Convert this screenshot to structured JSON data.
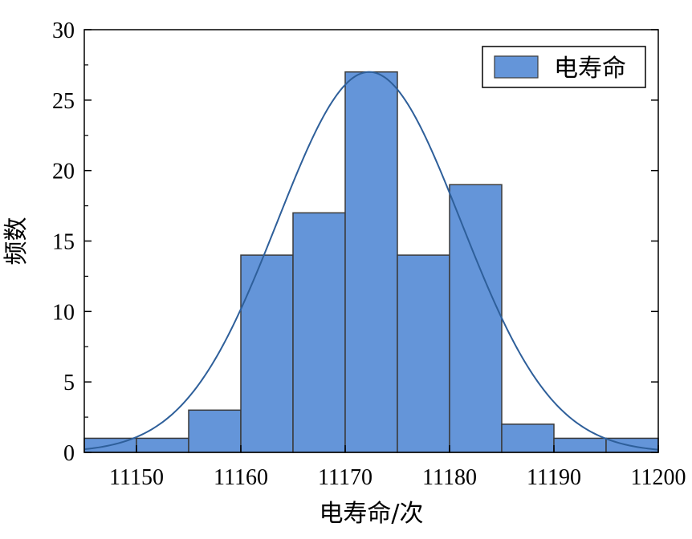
{
  "chart_data": {
    "type": "bar",
    "subtype": "histogram",
    "bin_edges": [
      11145,
      11150,
      11155,
      11160,
      11165,
      11170,
      11175,
      11180,
      11185,
      11190,
      11195,
      11200
    ],
    "values": [
      1,
      1,
      3,
      14,
      17,
      27,
      14,
      19,
      2,
      1,
      1
    ],
    "series": [
      {
        "name": "电寿命",
        "values": [
          1,
          1,
          3,
          14,
          17,
          27,
          14,
          19,
          2,
          1,
          1
        ]
      }
    ],
    "fit_curve": {
      "type": "normal",
      "mean": 11172.3,
      "sd": 8.8,
      "peak": 27
    },
    "xlabel": "电寿命/次",
    "ylabel": "频数",
    "xlim": [
      11145,
      11200
    ],
    "ylim": [
      0,
      30
    ],
    "xticks": [
      11150,
      11160,
      11170,
      11180,
      11190,
      11200
    ],
    "yticks": [
      0,
      5,
      10,
      15,
      20,
      25,
      30
    ],
    "grid": false,
    "legend_position": "top-right",
    "colors": {
      "bar_fill": "#6495d9",
      "bar_edge": "#3a3a3a",
      "curve": "#2e5f9a",
      "frame": "#000000"
    }
  }
}
